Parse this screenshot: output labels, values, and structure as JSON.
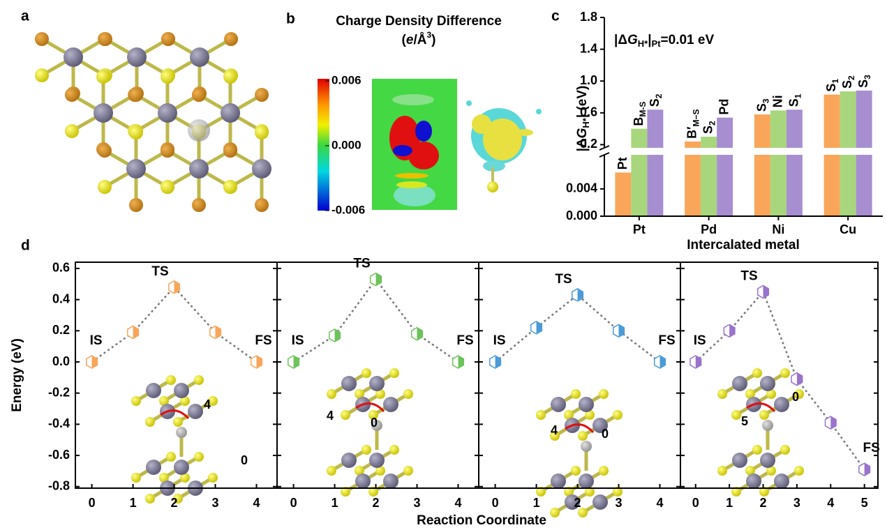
{
  "panel_labels": [
    "a",
    "b",
    "c",
    "d"
  ],
  "charge_density": {
    "title": "Charge Density Difference",
    "unit_parts": [
      "(",
      "e",
      "/Å",
      "3",
      ")"
    ],
    "clim": [
      -0.006,
      0.006
    ],
    "ticks": [
      0.006,
      {
        "value": 0,
        "label": "0.000"
      },
      -0.006
    ]
  },
  "chart_data": [
    {
      "type": "bar",
      "annotation_parts": [
        "|Δ",
        "G",
        "H*",
        "|",
        "Pt",
        "=0.01 eV"
      ],
      "ylabel_parts": [
        "|Δ",
        "G",
        "H*",
        "| (eV)"
      ],
      "xlabel": "Intercalated metal",
      "categories": [
        "Pt",
        "Pd",
        "Ni",
        "Cu"
      ],
      "series": [
        {
          "color": "#f9a65a",
          "values": [
            0.0064,
            0.24,
            0.58,
            0.83
          ],
          "labels": [
            [
              "Pt"
            ],
            [
              "B′",
              "M−S"
            ],
            [
              "S",
              "3"
            ],
            [
              "S",
              "1"
            ]
          ]
        },
        {
          "color": "#a8d67c",
          "values": [
            0.4,
            0.3,
            0.63,
            0.87
          ],
          "labels": [
            [
              "B",
              "M-S"
            ],
            [
              "S",
              "2"
            ],
            [
              "Ni"
            ],
            [
              "S",
              "2"
            ]
          ]
        },
        {
          "color": "#a78ed0",
          "values": [
            0.64,
            0.54,
            0.64,
            0.88
          ],
          "labels": [
            [
              "S",
              "2"
            ],
            [
              "Pd"
            ],
            [
              "S",
              "1"
            ],
            [
              "S",
              "3"
            ]
          ]
        }
      ],
      "ylim_lower": [
        0,
        0.009
      ],
      "yticks_lower": [
        {
          "value": 0,
          "label": "0.000"
        },
        0.004
      ],
      "ylim_upper": [
        0.16,
        1.8
      ],
      "yticks_upper": [
        0.2,
        0.6,
        {
          "value": 1,
          "label": "1.0"
        },
        1.4,
        1.8
      ]
    },
    {
      "type": "line",
      "ylabel": "Energy (eV)",
      "xlabel": "Reaction Coordinate",
      "ylim": [
        -0.81,
        0.64
      ],
      "yticks": [
        0.6,
        0.4,
        0.2,
        {
          "value": 0,
          "label": "0.0"
        },
        -0.2,
        -0.4,
        -0.6,
        -0.8
      ],
      "xlim": [
        -0.4,
        4.5
      ],
      "xticks": [
        0,
        1,
        2,
        3,
        4
      ],
      "x": [
        0,
        1,
        2,
        3,
        4
      ],
      "series": [
        {
          "color": "#f9a65a",
          "values": [
            0,
            0.19,
            0.48,
            0.19,
            0
          ]
        }
      ],
      "point_labels": [
        "IS",
        null,
        "TS",
        null,
        "FS"
      ],
      "inset_labels": [
        "4",
        "0"
      ]
    },
    {
      "type": "line",
      "xlim": [
        -0.4,
        4.5
      ],
      "xticks": [
        0,
        1,
        2,
        3,
        4
      ],
      "x": [
        0,
        1,
        2,
        3,
        4
      ],
      "series": [
        {
          "color": "#6cc35a",
          "values": [
            0,
            0.17,
            0.53,
            0.18,
            0
          ]
        }
      ],
      "point_labels": [
        "IS",
        null,
        "TS",
        null,
        "FS"
      ],
      "inset_labels": [
        "4",
        "0"
      ]
    },
    {
      "type": "line",
      "xlim": [
        -0.4,
        4.5
      ],
      "xticks": [
        0,
        1,
        2,
        3,
        4
      ],
      "x": [
        0,
        1,
        2,
        3,
        4
      ],
      "series": [
        {
          "color": "#4a9bd8",
          "values": [
            0,
            0.22,
            0.43,
            0.2,
            0
          ]
        }
      ],
      "point_labels": [
        "IS",
        null,
        "TS",
        null,
        "FS"
      ],
      "inset_labels": [
        "4",
        "0"
      ]
    },
    {
      "type": "line",
      "xlim": [
        -0.45,
        5.4
      ],
      "xticks": [
        0,
        1,
        2,
        3,
        4,
        5
      ],
      "x": [
        0,
        1,
        2,
        3,
        4,
        5
      ],
      "series": [
        {
          "color": "#9a73cc",
          "values": [
            0,
            0.2,
            0.45,
            -0.11,
            -0.39,
            -0.69
          ]
        }
      ],
      "point_labels": [
        "IS",
        null,
        "TS",
        null,
        null,
        "FS"
      ],
      "inset_labels": [
        "0",
        "5"
      ]
    }
  ]
}
